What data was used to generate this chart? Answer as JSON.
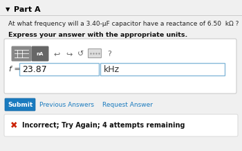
{
  "bg_color": "#f0f0f0",
  "part_label": "Part A",
  "question": "At what frequency will a 3.40-μF capacitor have a reactance of 6.50  kΩ ?",
  "bold_line": "Express your answer with the appropriate units.",
  "input_value": "23.87",
  "input_unit": "kHz",
  "f_label": "f =",
  "submit_label": "Submit",
  "prev_label": "Previous Answers",
  "req_label": "Request Answer",
  "error_label": "Incorrect; Try Again; 4 attempts remaining",
  "submit_color": "#1a7bbf",
  "link_color": "#1a7bbf",
  "error_x_color": "#cc2200",
  "input_border": "#85b8d9",
  "panel_bg": "#ffffff",
  "panel_border": "#cccccc",
  "btn1_color": "#888888",
  "btn2_color": "#666666",
  "icon_color": "#666666",
  "white": "#ffffff",
  "text_dark": "#222222",
  "text_med": "#444444"
}
